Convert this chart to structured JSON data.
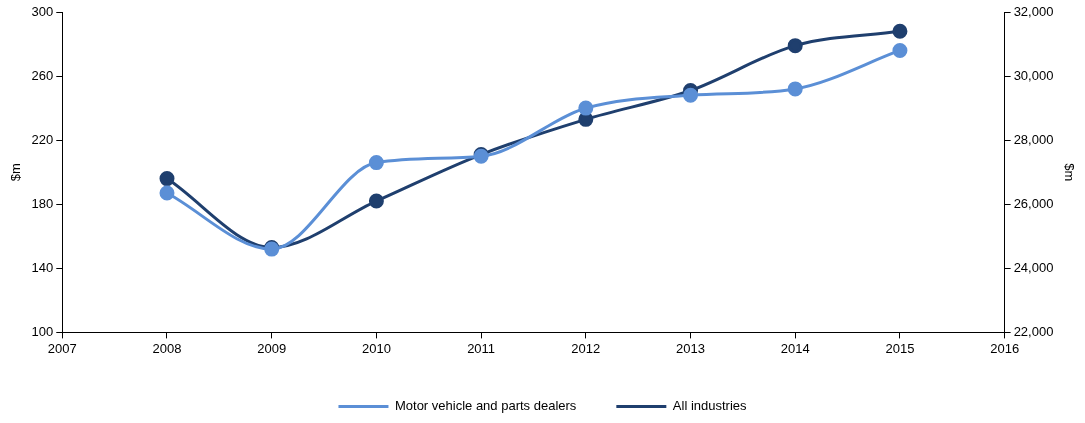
{
  "chart_data": {
    "type": "line",
    "ylabel": "$m",
    "y2label": "$m",
    "x": [
      2008,
      2009,
      2010,
      2011,
      2012,
      2013,
      2014,
      2015
    ],
    "xlim": [
      2007,
      2016
    ],
    "xticks": [
      2007,
      2008,
      2009,
      2010,
      2011,
      2012,
      2013,
      2014,
      2015,
      2016
    ],
    "ylim": [
      100,
      300
    ],
    "yticks": [
      100,
      140,
      180,
      220,
      260,
      300
    ],
    "y2lim": [
      22000,
      32000
    ],
    "y2ticks": [
      {
        "value": 22000,
        "label": "22,000"
      },
      {
        "value": 24000,
        "label": "24,000"
      },
      {
        "value": 26000,
        "label": "26,000"
      },
      {
        "value": 28000,
        "label": "28,000"
      },
      {
        "value": 30000,
        "label": "30,000"
      },
      {
        "value": 32000,
        "label": "32,000"
      }
    ],
    "series": [
      {
        "name": "Motor vehicle and parts dealers",
        "color": "#5b8fd6",
        "values": [
          187,
          152,
          206,
          210,
          240,
          248,
          252,
          276
        ]
      },
      {
        "name": "All industries",
        "color": "#1f3f6e",
        "axis": "y2",
        "values": [
          26800,
          24650,
          26100,
          27550,
          28650,
          29550,
          30950,
          31400
        ]
      }
    ],
    "marker": "circle",
    "legend": "bottom",
    "grid": false
  }
}
